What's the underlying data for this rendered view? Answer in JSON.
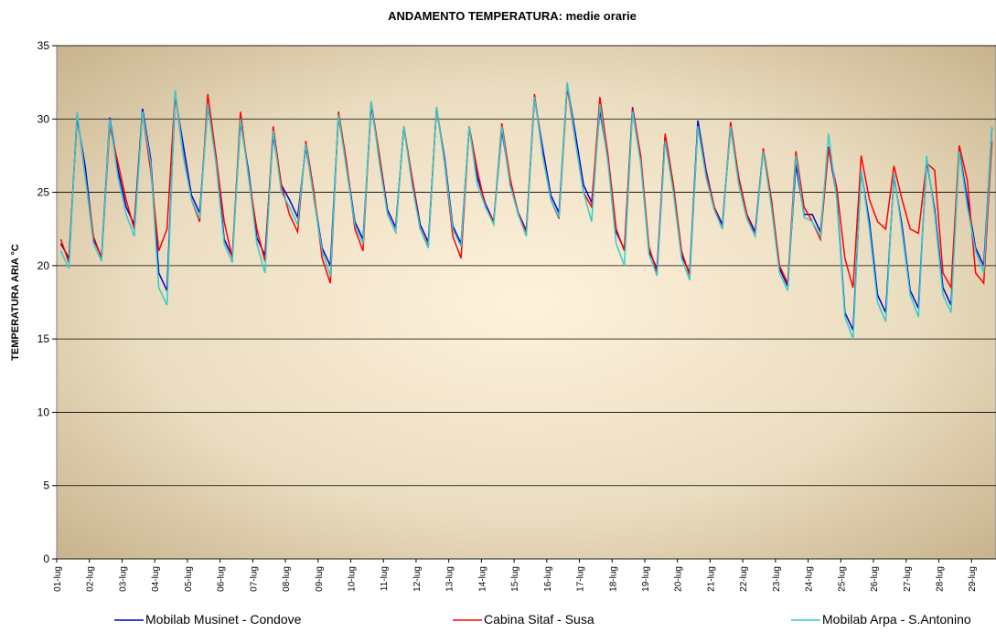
{
  "chart_data": {
    "type": "line",
    "title": "ANDAMENTO TEMPERATURA: medie orarie",
    "y_label": "TEMPERATURA ARIA °C",
    "categories": [
      "01-lug",
      null,
      null,
      null,
      "02-lug",
      null,
      null,
      null,
      "03-lug",
      null,
      null,
      null,
      "04-lug",
      null,
      null,
      null,
      "05-lug",
      null,
      null,
      null,
      "06-lug",
      null,
      null,
      null,
      "07-lug",
      null,
      null,
      null,
      "08-lug",
      null,
      null,
      null,
      "09-lug",
      null,
      null,
      null,
      "10-lug",
      null,
      null,
      null,
      "11-lug",
      null,
      null,
      null,
      "12-lug",
      null,
      null,
      null,
      "13-lug",
      null,
      null,
      null,
      "14-lug",
      null,
      null,
      null,
      "15-lug",
      null,
      null,
      null,
      "16-lug",
      null,
      null,
      null,
      "17-lug",
      null,
      null,
      null,
      "18-lug",
      null,
      null,
      null,
      "19-lug",
      null,
      null,
      null,
      "20-lug",
      null,
      null,
      null,
      "21-lug",
      null,
      null,
      null,
      "22-lug",
      null,
      null,
      null,
      "23-lug",
      null,
      null,
      null,
      "24-lug",
      null,
      null,
      null,
      "25-lug",
      null,
      null,
      null,
      "26-lug",
      null,
      null,
      null,
      "27-lug",
      null,
      null,
      null,
      "28-lug",
      null,
      null,
      null,
      "29-lug",
      null,
      null
    ],
    "series": [
      {
        "name": "Mobilab Musinet - Condove",
        "color": "#0000cc",
        "values": [
          21.5,
          20.5,
          30.1,
          26.7,
          21.8,
          20.6,
          30.1,
          26.5,
          24,
          22.8,
          30.7,
          27.3,
          19.5,
          18.3,
          31.6,
          28.2,
          24.8,
          23.6,
          30.9,
          27.5,
          21.8,
          20.6,
          29.8,
          26.4,
          21.9,
          20.7,
          28.9,
          25.5,
          24.5,
          23.3,
          28.1,
          24.7,
          21.2,
          20,
          30.2,
          26.8,
          23,
          21.8,
          30.9,
          27.5,
          23.8,
          22.6,
          29.4,
          26,
          22.8,
          21.6,
          30.7,
          27.3,
          22.7,
          21.5,
          29.4,
          26,
          24.2,
          23,
          29.2,
          25.8,
          23.6,
          22.4,
          31.4,
          28,
          24.8,
          23.6,
          32.4,
          29,
          25.5,
          24.3,
          30.6,
          27.2,
          22.3,
          21.1,
          30.8,
          27.4,
          21,
          19.8,
          28.9,
          25.5,
          20.7,
          19.5,
          29.9,
          26.5,
          24,
          22.8,
          29.4,
          26,
          23.5,
          22.3,
          27.9,
          24.5,
          19.8,
          18.6,
          26.9,
          23.5,
          23.5,
          22.3,
          28.1,
          24.7,
          16.8,
          15.6,
          26.4,
          23,
          18,
          16.8,
          26.1,
          22.7,
          18.3,
          17.1,
          27.2,
          23.8,
          18.5,
          17.3,
          27.9,
          24.5,
          21.2,
          20,
          29.4
        ]
      },
      {
        "name": "Cabina Sitaf - Susa",
        "color": "#ff0000",
        "values": [
          21.8,
          20.2,
          30.4,
          26,
          22,
          20.5,
          29.5,
          27,
          24.5,
          22.5,
          30.5,
          26.5,
          21,
          22.5,
          31.8,
          27.5,
          24.5,
          23,
          31.7,
          27.5,
          23,
          20.5,
          30.5,
          26,
          22.5,
          20.3,
          29.5,
          25.5,
          23.5,
          22.3,
          28.5,
          25,
          20.5,
          18.8,
          30.5,
          27,
          22.5,
          21,
          31.2,
          27.5,
          23.5,
          22.3,
          29.5,
          26,
          22.5,
          21.3,
          30.8,
          27,
          22,
          20.5,
          29.5,
          26.5,
          24,
          23,
          29.7,
          26,
          23.5,
          22.3,
          31.7,
          27.5,
          24.5,
          23.2,
          32.2,
          28.5,
          25,
          24,
          31.5,
          27.5,
          22.5,
          21,
          30.7,
          27.5,
          21.3,
          19.5,
          29,
          25.5,
          21,
          19.3,
          29.5,
          26.3,
          24,
          22.5,
          29.8,
          26,
          23.5,
          22,
          28,
          24.5,
          20,
          18.8,
          27.8,
          24,
          23,
          21.8,
          28,
          25.3,
          20.5,
          18.5,
          27.5,
          24.5,
          23,
          22.5,
          26.8,
          24.5,
          22.5,
          22.2,
          27,
          26.5,
          19.5,
          18.5,
          28.2,
          25.8,
          19.5,
          18.8,
          28.5
        ]
      },
      {
        "name": "Mobilab Arpa - S.Antonino",
        "color": "#33cccc",
        "values": [
          21,
          19.8,
          30.5,
          26,
          21.5,
          20.3,
          30,
          26,
          23.5,
          22,
          30.5,
          27,
          18.5,
          17.3,
          32,
          27.5,
          24.5,
          23.2,
          31,
          27,
          21.5,
          20.2,
          30,
          26,
          21.5,
          19.5,
          29.2,
          25,
          24,
          22.8,
          28.3,
          24.5,
          21,
          19.3,
          30.3,
          26.5,
          22.8,
          21.5,
          31.2,
          27,
          23.5,
          22.3,
          29.5,
          25.5,
          22.5,
          21.2,
          30.8,
          27,
          22.5,
          21.3,
          29.5,
          25.5,
          24,
          22.8,
          29.5,
          25.5,
          23.5,
          22,
          31.5,
          27.5,
          24.5,
          23.3,
          32.5,
          28.5,
          25,
          23,
          31,
          27,
          21.5,
          20,
          30.5,
          27,
          20.8,
          19.3,
          28.5,
          25,
          20.5,
          19,
          29.5,
          26,
          23.8,
          22.5,
          29.5,
          25.5,
          23.2,
          22,
          27.8,
          24,
          19.5,
          18.3,
          27.5,
          23.3,
          23,
          22,
          29,
          24.5,
          16.5,
          15,
          26.5,
          22.5,
          17.5,
          16.2,
          26.3,
          22.3,
          18,
          16.5,
          27.5,
          23.5,
          18,
          16.8,
          27.8,
          24,
          21,
          19.5,
          29.5
        ]
      }
    ],
    "ylim": [
      0,
      35
    ],
    "yticks": [
      0,
      5,
      10,
      15,
      20,
      25,
      30,
      35
    ],
    "grid": true
  }
}
